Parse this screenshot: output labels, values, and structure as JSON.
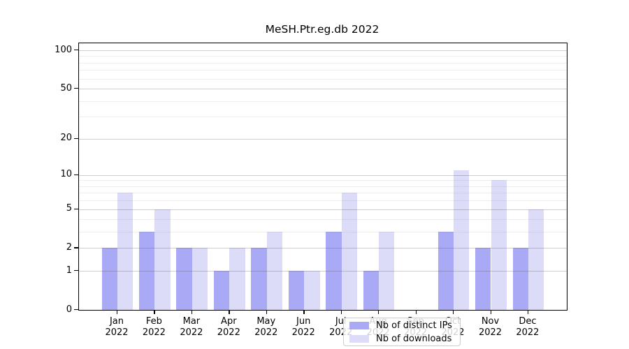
{
  "title": "MeSH.Ptr.eg.db 2022",
  "chart_data": {
    "type": "bar",
    "title": "MeSH.Ptr.eg.db 2022",
    "xlabel": "",
    "ylabel": "",
    "categories": [
      "Jan 2022",
      "Feb 2022",
      "Mar 2022",
      "Apr 2022",
      "May 2022",
      "Jun 2022",
      "Jul 2022",
      "Aug 2022",
      "Sep 2022",
      "Oct 2022",
      "Nov 2022",
      "Dec 2022"
    ],
    "series": [
      {
        "name": "Nb of distinct IPs",
        "color": "#a9a9f6",
        "values": [
          2,
          3,
          2,
          1,
          2,
          1,
          3,
          1,
          0,
          3,
          2,
          2
        ]
      },
      {
        "name": "Nb of downloads",
        "color": "#dcdcf8",
        "values": [
          7,
          5,
          2,
          2,
          3,
          1,
          7,
          3,
          0,
          11,
          9,
          5
        ]
      }
    ],
    "y_scale": "log1p",
    "y_ticks": [
      0,
      1,
      2,
      5,
      10,
      20,
      50,
      100
    ],
    "y_minor_ticks": [
      3,
      4,
      6,
      7,
      8,
      9,
      30,
      40,
      60,
      70,
      80,
      90
    ],
    "ylim": [
      0,
      115
    ],
    "grid": true,
    "legend_position": "lower center"
  },
  "colors": {
    "bar_distinct_ips": "#a9a9f6",
    "bar_downloads": "#dcdcf8",
    "grid_major": "rgba(80,80,80,0.28)",
    "grid_minor": "rgba(80,80,80,0.09)",
    "axis": "#000000",
    "legend_border": "#cccccc",
    "legend_background": "rgba(255,255,255,0.82)"
  }
}
